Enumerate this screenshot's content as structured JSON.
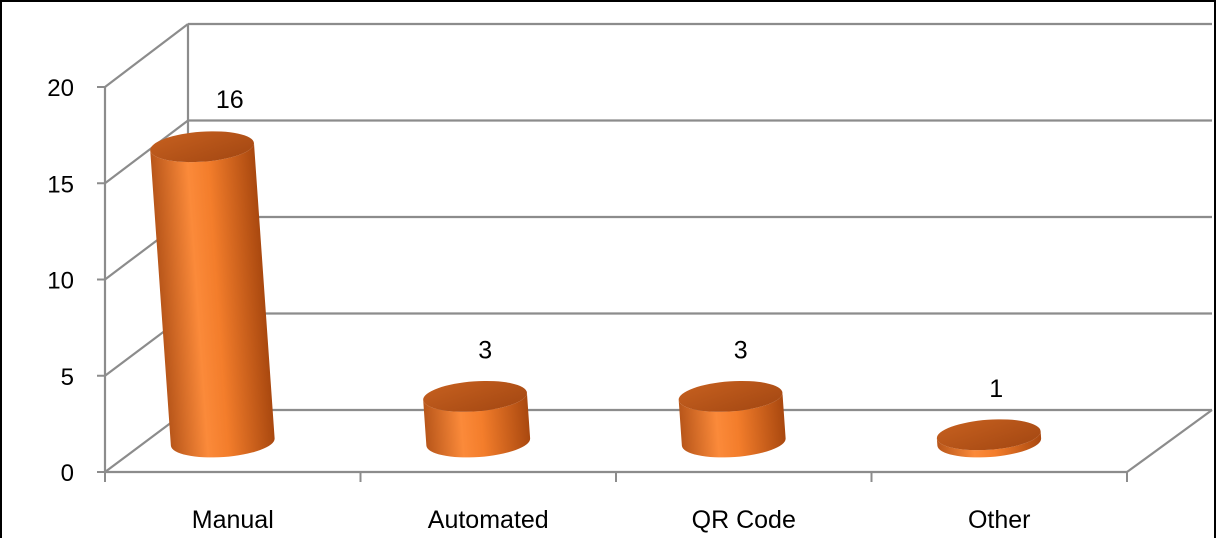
{
  "chart_data": {
    "type": "bar",
    "categories": [
      "Manual",
      "Automated",
      "QR Code",
      "Other"
    ],
    "values": [
      16,
      3,
      3,
      1
    ],
    "ylim": [
      0,
      20
    ],
    "yticks": [
      0,
      5,
      10,
      15,
      20
    ],
    "data_labels": [
      "16",
      "3",
      "3",
      "1"
    ],
    "grid": true,
    "legend": "none",
    "style": "3d-cylinder",
    "bar_color": "#f0842c"
  }
}
